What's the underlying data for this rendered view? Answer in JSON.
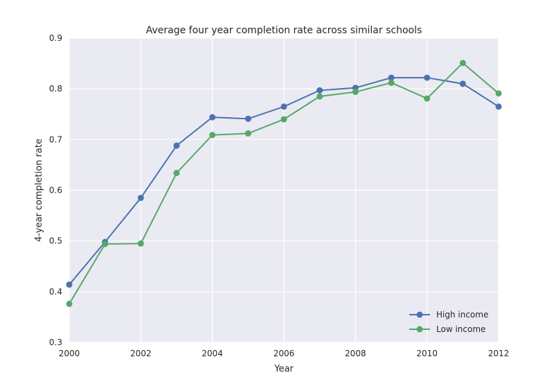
{
  "chart_data": {
    "type": "line",
    "title": "Average four year completion rate across similar schools",
    "xlabel": "Year",
    "ylabel": "4-year completion rate",
    "xlim": [
      2000,
      2012
    ],
    "ylim": [
      0.3,
      0.9
    ],
    "xticks": [
      "2000",
      "2002",
      "2004",
      "2006",
      "2008",
      "2010",
      "2012"
    ],
    "yticks": [
      "0.3",
      "0.4",
      "0.5",
      "0.6",
      "0.7",
      "0.8",
      "0.9"
    ],
    "grid": true,
    "legend_position": "bottom-right",
    "x": [
      2000,
      2001,
      2002,
      2003,
      2004,
      2005,
      2006,
      2007,
      2008,
      2009,
      2010,
      2011,
      2012
    ],
    "series": [
      {
        "name": "High income",
        "color": "#4c72b0",
        "values": [
          0.414,
          0.498,
          0.585,
          0.688,
          0.744,
          0.741,
          0.765,
          0.797,
          0.802,
          0.822,
          0.822,
          0.81,
          0.765
        ]
      },
      {
        "name": "Low income",
        "color": "#55a868",
        "values": [
          0.376,
          0.494,
          0.495,
          0.634,
          0.709,
          0.712,
          0.74,
          0.785,
          0.794,
          0.812,
          0.781,
          0.851,
          0.791
        ]
      }
    ]
  }
}
